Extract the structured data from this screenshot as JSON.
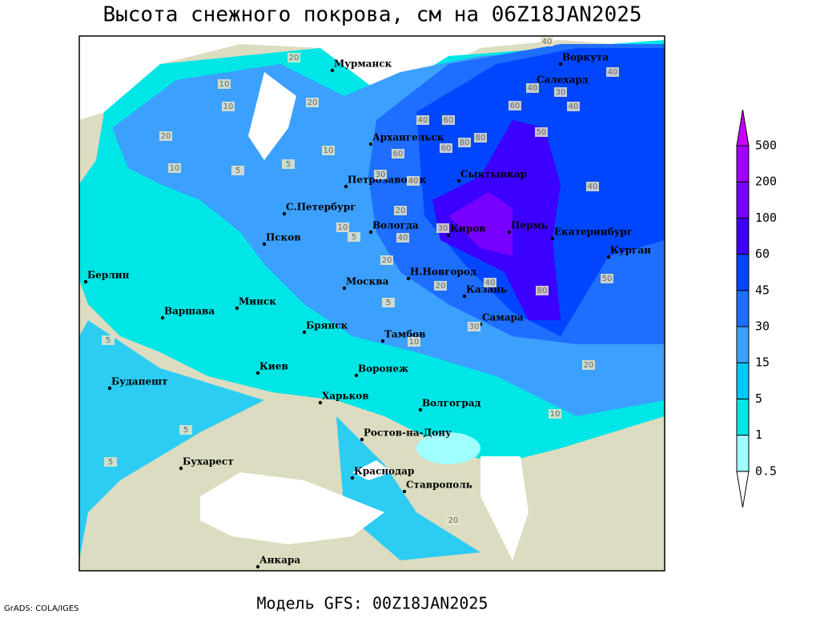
{
  "title": "Высота снежного покрова, см на 06Z18JAN2025",
  "footer": "Модель GFS: 00Z18JAN2025",
  "credit": "GrADS: COLA/IGES",
  "cities": [
    "Мурманск",
    "Архангельск",
    "Воркута",
    "Салехард",
    "Сыктывкар",
    "Петрозаводск",
    "С.Петербург",
    "Вологда",
    "Киров",
    "Пермь",
    "Екатеринбург",
    "Курган",
    "Псков",
    "Берлин",
    "Н.Новгород",
    "Москва",
    "Казань",
    "Минск",
    "Варшава",
    "Самара",
    "Брянск",
    "Тамбов",
    "Киев",
    "Воронеж",
    "Будапешт",
    "Харьков",
    "Волгоград",
    "Ростов-на-Дону",
    "Бухарест",
    "Краснодар",
    "Ставрополь",
    "Анкара"
  ],
  "contour_labels": [
    20,
    10,
    40,
    20,
    10,
    30,
    20,
    10,
    5,
    10,
    5,
    60,
    80,
    60,
    40,
    80,
    60,
    40,
    40,
    60,
    40,
    30,
    40,
    40,
    50,
    20,
    30,
    40,
    20,
    40,
    80,
    50,
    20,
    10,
    5,
    5,
    5,
    5,
    5,
    20,
    10,
    10,
    30,
    20
  ],
  "colorbar": {
    "levels": [
      0.5,
      1,
      5,
      15,
      30,
      45,
      60,
      100,
      200,
      500
    ],
    "colors": [
      "#ffffff",
      "#a0ffff",
      "#00e6e6",
      "#00c8ff",
      "#3ca0ff",
      "#1e6eff",
      "#0046ff",
      "#3c00ff",
      "#7800ff",
      "#a000ff",
      "#c800ff"
    ]
  }
}
